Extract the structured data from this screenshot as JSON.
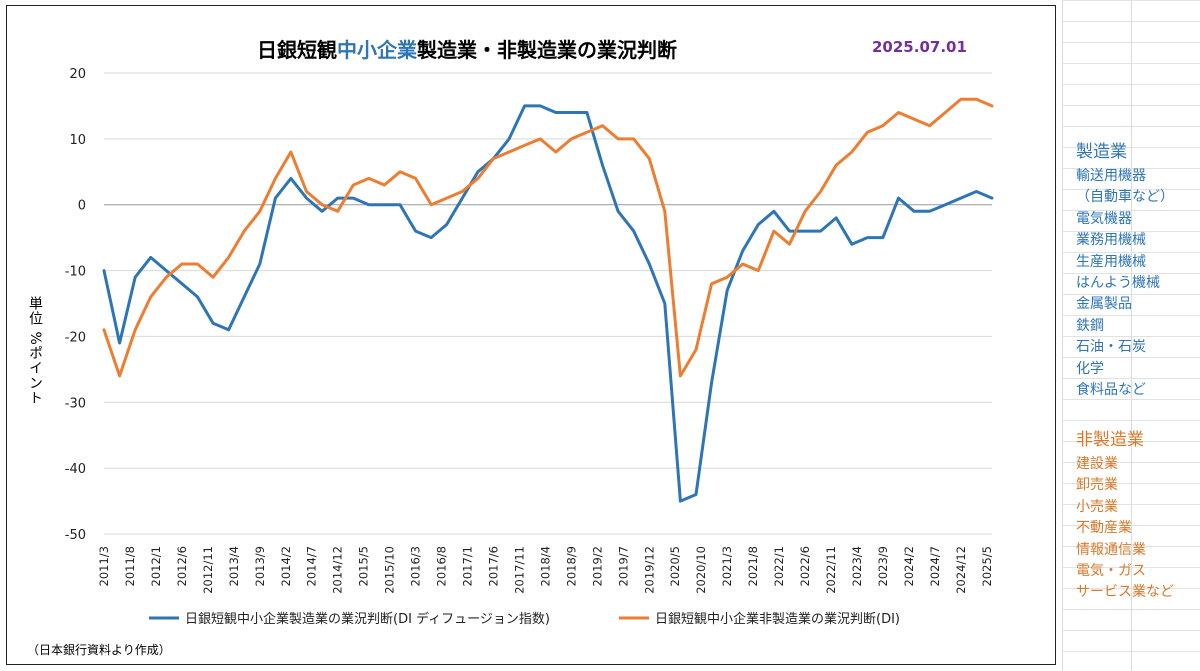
{
  "title": {
    "part1": "日銀短観",
    "part2": "中小企業",
    "part3": "製造業・非製造業の業況判断",
    "date": "2025.07.01",
    "accent_color": "#2e75b6",
    "date_color": "#7030a0"
  },
  "ylabel": "単位 %ポイント",
  "source_note": "（日本銀行資料より作成）",
  "side_legend": {
    "manufacturing": {
      "heading": "製造業",
      "color": "#2e75b6",
      "items": [
        "輸送用機器",
        "（自動車など）",
        "電気機器",
        "業務用機械",
        "生産用機械",
        "はんよう機械",
        "金属製品",
        "鉄鋼",
        "石油・石炭",
        "化学",
        "食料品など"
      ]
    },
    "non_manufacturing": {
      "heading": "非製造業",
      "color": "#d9782a",
      "items": [
        "建設業",
        "卸売業",
        "小売業",
        "不動産業",
        "情報通信業",
        "電気・ガス",
        "サービス業など"
      ]
    }
  },
  "chart_data": {
    "type": "line",
    "title": "日銀短観中小企業製造業・非製造業の業況判断",
    "ylabel": "単位 %ポイント",
    "ylim": [
      -50,
      20
    ],
    "yticks": [
      20,
      10,
      0,
      -10,
      -20,
      -30,
      -40,
      -50
    ],
    "grid": true,
    "legend_position": "bottom",
    "x_tick_labels": [
      "2011/3",
      "2011/8",
      "2012/1",
      "2012/6",
      "2012/11",
      "2013/4",
      "2013/9",
      "2014/2",
      "2014/7",
      "2014/12",
      "2015/5",
      "2015/10",
      "2016/3",
      "2016/8",
      "2017/1",
      "2017/6",
      "2017/11",
      "2018/4",
      "2018/9",
      "2019/2",
      "2019/7",
      "2019/12",
      "2020/5",
      "2020/10",
      "2021/3",
      "2021/8",
      "2022/1",
      "2022/6",
      "2022/11",
      "2023/4",
      "2023/9",
      "2024/2",
      "2024/7",
      "2024/12",
      "2025/5"
    ],
    "x": [
      "2011/3",
      "2011/6",
      "2011/9",
      "2011/12",
      "2012/3",
      "2012/6",
      "2012/9",
      "2012/12",
      "2013/3",
      "2013/6",
      "2013/9",
      "2013/12",
      "2014/3",
      "2014/6",
      "2014/9",
      "2014/12",
      "2015/3",
      "2015/6",
      "2015/9",
      "2015/12",
      "2016/3",
      "2016/6",
      "2016/9",
      "2016/12",
      "2017/3",
      "2017/6",
      "2017/9",
      "2017/12",
      "2018/3",
      "2018/6",
      "2018/9",
      "2018/12",
      "2019/3",
      "2019/6",
      "2019/9",
      "2019/12",
      "2020/3",
      "2020/6",
      "2020/9",
      "2020/12",
      "2021/3",
      "2021/6",
      "2021/9",
      "2021/12",
      "2022/3",
      "2022/6",
      "2022/9",
      "2022/12",
      "2023/3",
      "2023/6",
      "2023/9",
      "2023/12",
      "2024/3",
      "2024/6",
      "2024/9",
      "2024/12",
      "2025/3",
      "2025/6"
    ],
    "series": [
      {
        "name": "日銀短観中小企業製造業の業況判断(DI ディフュージョン指数)",
        "color": "#2e75b6",
        "values": [
          -10,
          -21,
          -11,
          -8,
          -10,
          -12,
          -14,
          -18,
          -19,
          -14,
          -9,
          1,
          4,
          1,
          -1,
          1,
          1,
          0,
          0,
          0,
          -4,
          -5,
          -3,
          1,
          5,
          7,
          10,
          15,
          15,
          14,
          14,
          14,
          6,
          -1,
          -4,
          -9,
          -15,
          -45,
          -44,
          -27,
          -13,
          -7,
          -3,
          -1,
          -4,
          -4,
          -4,
          -2,
          -6,
          -5,
          -5,
          1,
          -1,
          -1,
          0,
          1,
          2,
          1
        ]
      },
      {
        "name": "日銀短観中小企業非製造業の業況判断(DI)",
        "color": "#ed7d31",
        "values": [
          -19,
          -26,
          -19,
          -14,
          -11,
          -9,
          -9,
          -11,
          -8,
          -4,
          -1,
          4,
          8,
          2,
          0,
          -1,
          3,
          4,
          3,
          5,
          4,
          0,
          1,
          2,
          4,
          7,
          8,
          9,
          10,
          8,
          10,
          11,
          12,
          10,
          10,
          7,
          -1,
          -26,
          -22,
          -12,
          -11,
          -9,
          -10,
          -4,
          -6,
          -1,
          2,
          6,
          8,
          11,
          12,
          14,
          13,
          12,
          14,
          16,
          16,
          15
        ]
      }
    ]
  }
}
